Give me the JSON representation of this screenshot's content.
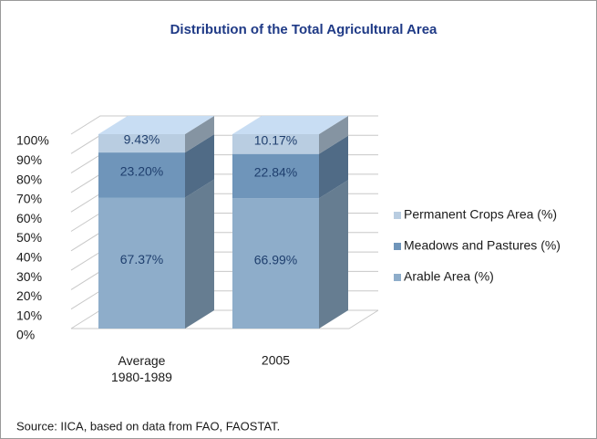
{
  "chart_data": {
    "type": "bar3d_stacked",
    "title": "Distribution of the Total Agricultural Area",
    "categories": [
      "Average 1980-1989",
      "2005"
    ],
    "series": [
      {
        "name": "Arable Area (%)",
        "color": "#8eadca",
        "values": [
          67.37,
          66.99
        ],
        "value_labels": [
          "67.37%",
          "66.99%"
        ]
      },
      {
        "name": "Meadows and Pastures (%)",
        "color": "#6f95ba",
        "values": [
          23.2,
          22.84
        ],
        "value_labels": [
          "23.20%",
          "22.84%"
        ]
      },
      {
        "name": "Permanent Crops Area (%)",
        "color": "#b9cde1",
        "values": [
          9.43,
          10.17
        ],
        "value_labels": [
          "9.43%",
          "10.17%"
        ]
      }
    ],
    "ylim": [
      0,
      100
    ],
    "yticks": [
      {
        "value": 0,
        "label": "0%"
      },
      {
        "value": 10,
        "label": "10%"
      },
      {
        "value": 20,
        "label": "20%"
      },
      {
        "value": 30,
        "label": "30%"
      },
      {
        "value": 40,
        "label": "40%"
      },
      {
        "value": 50,
        "label": "50%"
      },
      {
        "value": 60,
        "label": "60%"
      },
      {
        "value": 70,
        "label": "70%"
      },
      {
        "value": 80,
        "label": "80%"
      },
      {
        "value": 90,
        "label": "90%"
      },
      {
        "value": 100,
        "label": "100%"
      }
    ],
    "grid": true,
    "legend": "right",
    "source": "Source: IICA, based on data from FAO, FAOSTAT."
  }
}
